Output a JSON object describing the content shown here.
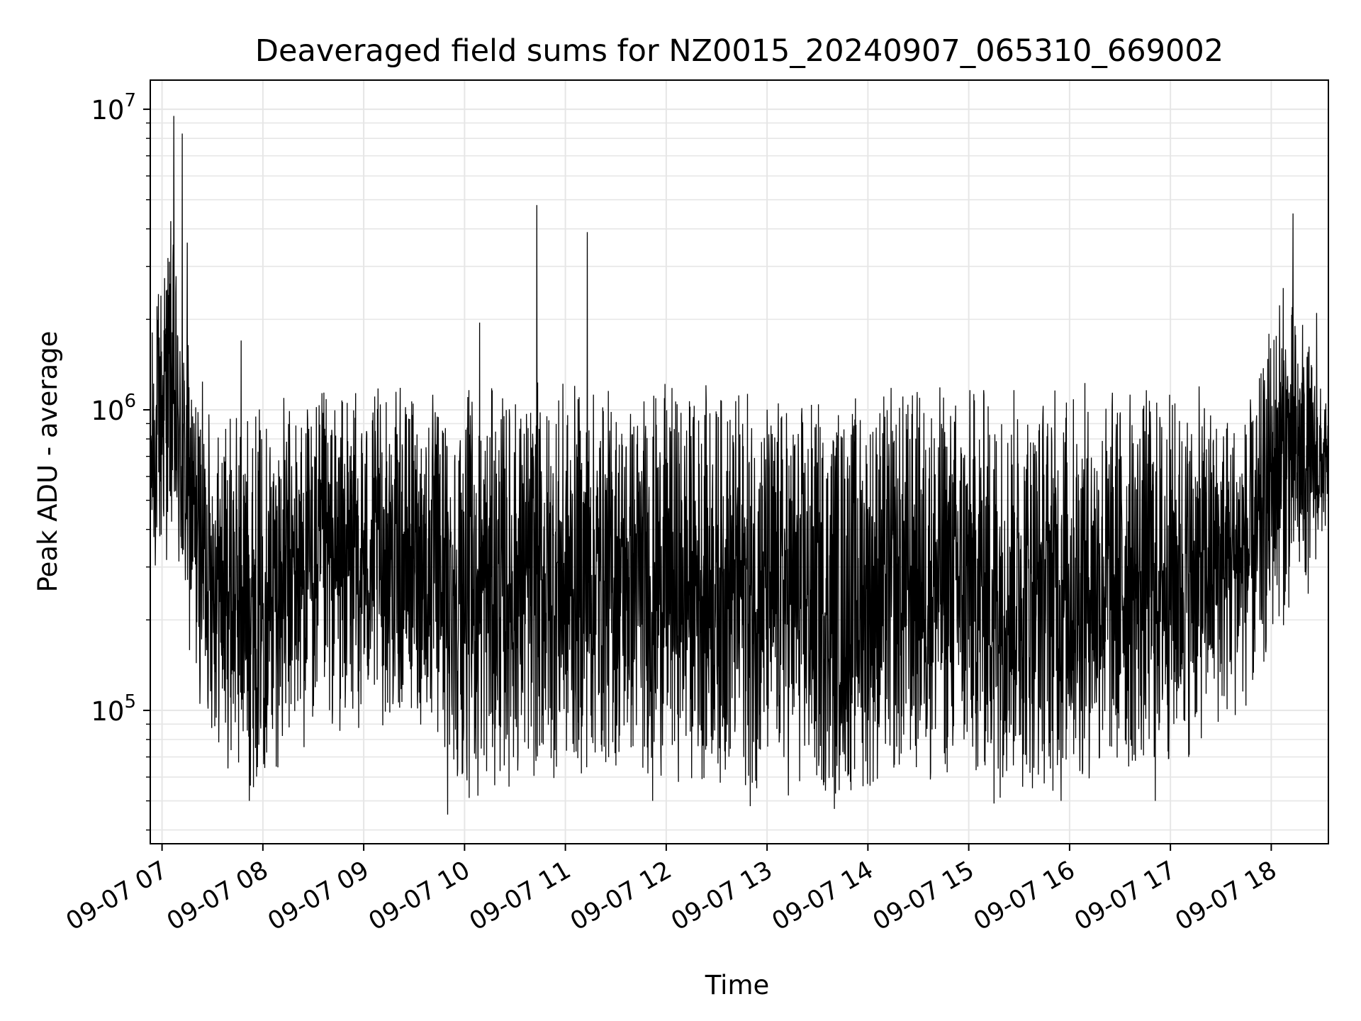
{
  "chart_data": {
    "type": "line",
    "title": "Deaveraged field sums for NZ0015_20240907_065310_669002",
    "xlabel": "Time",
    "ylabel": "Peak ADU - average",
    "x_scale": "time",
    "y_scale": "log",
    "xlim": [
      "2024-09-07 06:53",
      "2024-09-07 18:34"
    ],
    "ylim": [
      36000,
      12500000
    ],
    "grid": true,
    "line_color": "#000000",
    "grid_color": "#e6e6e6",
    "x_ticks": [
      {
        "t": "2024-09-07 07:00",
        "label": "09-07 07"
      },
      {
        "t": "2024-09-07 08:00",
        "label": "09-07 08"
      },
      {
        "t": "2024-09-07 09:00",
        "label": "09-07 09"
      },
      {
        "t": "2024-09-07 10:00",
        "label": "09-07 10"
      },
      {
        "t": "2024-09-07 11:00",
        "label": "09-07 11"
      },
      {
        "t": "2024-09-07 12:00",
        "label": "09-07 12"
      },
      {
        "t": "2024-09-07 13:00",
        "label": "09-07 13"
      },
      {
        "t": "2024-09-07 14:00",
        "label": "09-07 14"
      },
      {
        "t": "2024-09-07 15:00",
        "label": "09-07 15"
      },
      {
        "t": "2024-09-07 16:00",
        "label": "09-07 16"
      },
      {
        "t": "2024-09-07 17:00",
        "label": "09-07 17"
      },
      {
        "t": "2024-09-07 18:00",
        "label": "09-07 18"
      }
    ],
    "y_ticks": [
      {
        "value": 100000,
        "base": "10",
        "exp": "5"
      },
      {
        "value": 1000000,
        "base": "10",
        "exp": "6"
      },
      {
        "value": 10000000,
        "base": "10",
        "exp": "7"
      }
    ],
    "series": [
      {
        "approximate_envelope": {
          "note_points": "time, lower value, upper value",
          "points": [
            [
              "2024-09-07 06:53",
              230000,
              1800000
            ],
            [
              "2024-09-07 07:00",
              260000,
              3700000
            ],
            [
              "2024-09-07 07:05",
              350000,
              4900000
            ],
            [
              "2024-09-07 07:10",
              200000,
              2500000
            ],
            [
              "2024-09-07 07:20",
              110000,
              1400000
            ],
            [
              "2024-09-07 07:35",
              65000,
              1000000
            ],
            [
              "2024-09-07 07:50",
              52000,
              1100000
            ],
            [
              "2024-09-07 08:30",
              75000,
              1200000
            ],
            [
              "2024-09-07 09:30",
              90000,
              1200000
            ],
            [
              "2024-09-07 10:00",
              50000,
              1200000
            ],
            [
              "2024-09-07 10:40",
              55000,
              1250000
            ],
            [
              "2024-09-07 11:30",
              60000,
              1250000
            ],
            [
              "2024-09-07 12:30",
              55000,
              1250000
            ],
            [
              "2024-09-07 13:30",
              47000,
              1150000
            ],
            [
              "2024-09-07 14:30",
              55000,
              1300000
            ],
            [
              "2024-09-07 15:30",
              50000,
              1300000
            ],
            [
              "2024-09-07 16:30",
              55000,
              1300000
            ],
            [
              "2024-09-07 17:00",
              60000,
              1250000
            ],
            [
              "2024-09-07 17:50",
              100000,
              1100000
            ],
            [
              "2024-09-07 18:05",
              180000,
              3000000
            ],
            [
              "2024-09-07 18:20",
              220000,
              2000000
            ],
            [
              "2024-09-07 18:34",
              400000,
              1000000
            ]
          ]
        },
        "notable_peaks": [
          [
            "2024-09-07 07:07",
            9500000
          ],
          [
            "2024-09-07 07:12",
            8300000
          ],
          [
            "2024-09-07 07:15",
            3600000
          ],
          [
            "2024-09-07 07:47",
            1700000
          ],
          [
            "2024-09-07 10:09",
            1950000
          ],
          [
            "2024-09-07 10:43",
            4800000
          ],
          [
            "2024-09-07 11:13",
            3900000
          ],
          [
            "2024-09-07 18:13",
            4500000
          ],
          [
            "2024-09-07 18:27",
            2100000
          ]
        ],
        "notable_troughs": [
          [
            "2024-09-07 07:52",
            50000
          ],
          [
            "2024-09-07 09:50",
            45000
          ],
          [
            "2024-09-07 10:08",
            52000
          ],
          [
            "2024-09-07 11:52",
            50000
          ],
          [
            "2024-09-07 12:50",
            48000
          ],
          [
            "2024-09-07 13:40",
            47000
          ],
          [
            "2024-09-07 15:15",
            49000
          ],
          [
            "2024-09-07 15:55",
            50000
          ],
          [
            "2024-09-07 16:51",
            50000
          ]
        ]
      }
    ]
  }
}
